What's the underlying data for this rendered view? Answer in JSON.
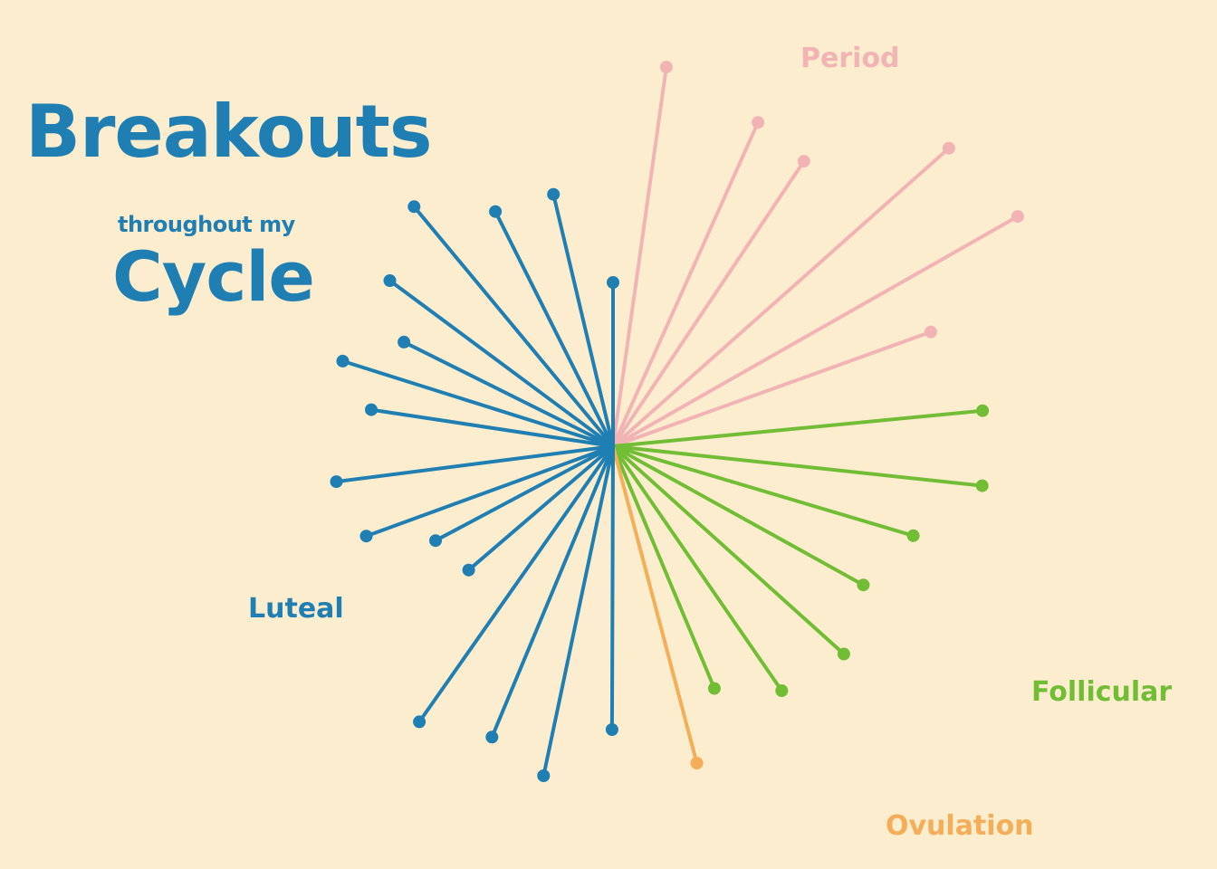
{
  "title": {
    "line1": "Breakouts",
    "line2": "throughout my",
    "line3": "Cycle"
  },
  "colors": {
    "background": "#fdedcf",
    "title": "#1f7fb3",
    "Period": "#f2b3b5",
    "Follicular": "#72bd36",
    "Ovulation": "#f4ad58",
    "Luteal": "#1f7fb3"
  },
  "phases": [
    {
      "name": "Period",
      "label": "Period"
    },
    {
      "name": "Follicular",
      "label": "Follicular"
    },
    {
      "name": "Ovulation",
      "label": "Ovulation"
    },
    {
      "name": "Luteal",
      "label": "Luteal"
    }
  ],
  "chart_data": {
    "type": "radial-lollipop",
    "title": "Breakouts throughout my Cycle",
    "series": [
      {
        "name": "Period",
        "angles_deg": [
          8.0,
          24.1,
          33.8,
          48.4,
          60.4,
          70.2
        ],
        "lengths": [
          423,
          392,
          379,
          496,
          514,
          373
        ]
      },
      {
        "name": "Follicular",
        "angles_deg": [
          84.5,
          96.1,
          106.6,
          119.0,
          132.0,
          145.4,
          157.3
        ],
        "lengths": [
          410,
          410,
          346,
          316,
          343,
          328,
          290
        ]
      },
      {
        "name": "Ovulation",
        "angles_deg": [
          165.2
        ],
        "lengths": [
          362
        ]
      },
      {
        "name": "Luteal",
        "angles_deg": [
          180.2,
          191.9,
          202.6,
          215.1,
          229.4,
          242.0,
          250.0,
          262.7,
          278.6,
          287.5,
          296.5,
          306.6,
          320.3,
          333.4,
          346.7,
          360.0
        ],
        "lengths": [
          313,
          372,
          348,
          372,
          210,
          222,
          290,
          308,
          270,
          313,
          258,
          307,
          344,
          290,
          286,
          181
        ]
      }
    ]
  }
}
